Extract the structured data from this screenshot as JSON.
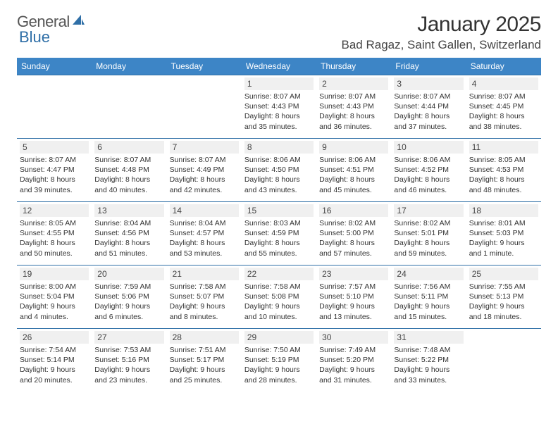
{
  "brand": {
    "part1": "General",
    "part2": "Blue"
  },
  "title": "January 2025",
  "location": "Bad Ragaz, Saint Gallen, Switzerland",
  "colors": {
    "header_bg": "#3d85c6",
    "header_text": "#ffffff",
    "rule": "#2f6fa7",
    "daynum_bg": "#f0f0f0",
    "text": "#333333"
  },
  "dow": [
    "Sunday",
    "Monday",
    "Tuesday",
    "Wednesday",
    "Thursday",
    "Friday",
    "Saturday"
  ],
  "weeks": [
    [
      null,
      null,
      null,
      {
        "n": "1",
        "sr": "8:07 AM",
        "ss": "4:43 PM",
        "dl": "8 hours and 35 minutes."
      },
      {
        "n": "2",
        "sr": "8:07 AM",
        "ss": "4:43 PM",
        "dl": "8 hours and 36 minutes."
      },
      {
        "n": "3",
        "sr": "8:07 AM",
        "ss": "4:44 PM",
        "dl": "8 hours and 37 minutes."
      },
      {
        "n": "4",
        "sr": "8:07 AM",
        "ss": "4:45 PM",
        "dl": "8 hours and 38 minutes."
      }
    ],
    [
      {
        "n": "5",
        "sr": "8:07 AM",
        "ss": "4:47 PM",
        "dl": "8 hours and 39 minutes."
      },
      {
        "n": "6",
        "sr": "8:07 AM",
        "ss": "4:48 PM",
        "dl": "8 hours and 40 minutes."
      },
      {
        "n": "7",
        "sr": "8:07 AM",
        "ss": "4:49 PM",
        "dl": "8 hours and 42 minutes."
      },
      {
        "n": "8",
        "sr": "8:06 AM",
        "ss": "4:50 PM",
        "dl": "8 hours and 43 minutes."
      },
      {
        "n": "9",
        "sr": "8:06 AM",
        "ss": "4:51 PM",
        "dl": "8 hours and 45 minutes."
      },
      {
        "n": "10",
        "sr": "8:06 AM",
        "ss": "4:52 PM",
        "dl": "8 hours and 46 minutes."
      },
      {
        "n": "11",
        "sr": "8:05 AM",
        "ss": "4:53 PM",
        "dl": "8 hours and 48 minutes."
      }
    ],
    [
      {
        "n": "12",
        "sr": "8:05 AM",
        "ss": "4:55 PM",
        "dl": "8 hours and 50 minutes."
      },
      {
        "n": "13",
        "sr": "8:04 AM",
        "ss": "4:56 PM",
        "dl": "8 hours and 51 minutes."
      },
      {
        "n": "14",
        "sr": "8:04 AM",
        "ss": "4:57 PM",
        "dl": "8 hours and 53 minutes."
      },
      {
        "n": "15",
        "sr": "8:03 AM",
        "ss": "4:59 PM",
        "dl": "8 hours and 55 minutes."
      },
      {
        "n": "16",
        "sr": "8:02 AM",
        "ss": "5:00 PM",
        "dl": "8 hours and 57 minutes."
      },
      {
        "n": "17",
        "sr": "8:02 AM",
        "ss": "5:01 PM",
        "dl": "8 hours and 59 minutes."
      },
      {
        "n": "18",
        "sr": "8:01 AM",
        "ss": "5:03 PM",
        "dl": "9 hours and 1 minute."
      }
    ],
    [
      {
        "n": "19",
        "sr": "8:00 AM",
        "ss": "5:04 PM",
        "dl": "9 hours and 4 minutes."
      },
      {
        "n": "20",
        "sr": "7:59 AM",
        "ss": "5:06 PM",
        "dl": "9 hours and 6 minutes."
      },
      {
        "n": "21",
        "sr": "7:58 AM",
        "ss": "5:07 PM",
        "dl": "9 hours and 8 minutes."
      },
      {
        "n": "22",
        "sr": "7:58 AM",
        "ss": "5:08 PM",
        "dl": "9 hours and 10 minutes."
      },
      {
        "n": "23",
        "sr": "7:57 AM",
        "ss": "5:10 PM",
        "dl": "9 hours and 13 minutes."
      },
      {
        "n": "24",
        "sr": "7:56 AM",
        "ss": "5:11 PM",
        "dl": "9 hours and 15 minutes."
      },
      {
        "n": "25",
        "sr": "7:55 AM",
        "ss": "5:13 PM",
        "dl": "9 hours and 18 minutes."
      }
    ],
    [
      {
        "n": "26",
        "sr": "7:54 AM",
        "ss": "5:14 PM",
        "dl": "9 hours and 20 minutes."
      },
      {
        "n": "27",
        "sr": "7:53 AM",
        "ss": "5:16 PM",
        "dl": "9 hours and 23 minutes."
      },
      {
        "n": "28",
        "sr": "7:51 AM",
        "ss": "5:17 PM",
        "dl": "9 hours and 25 minutes."
      },
      {
        "n": "29",
        "sr": "7:50 AM",
        "ss": "5:19 PM",
        "dl": "9 hours and 28 minutes."
      },
      {
        "n": "30",
        "sr": "7:49 AM",
        "ss": "5:20 PM",
        "dl": "9 hours and 31 minutes."
      },
      {
        "n": "31",
        "sr": "7:48 AM",
        "ss": "5:22 PM",
        "dl": "9 hours and 33 minutes."
      },
      null
    ]
  ],
  "labels": {
    "sunrise": "Sunrise:",
    "sunset": "Sunset:",
    "daylight": "Daylight:"
  }
}
